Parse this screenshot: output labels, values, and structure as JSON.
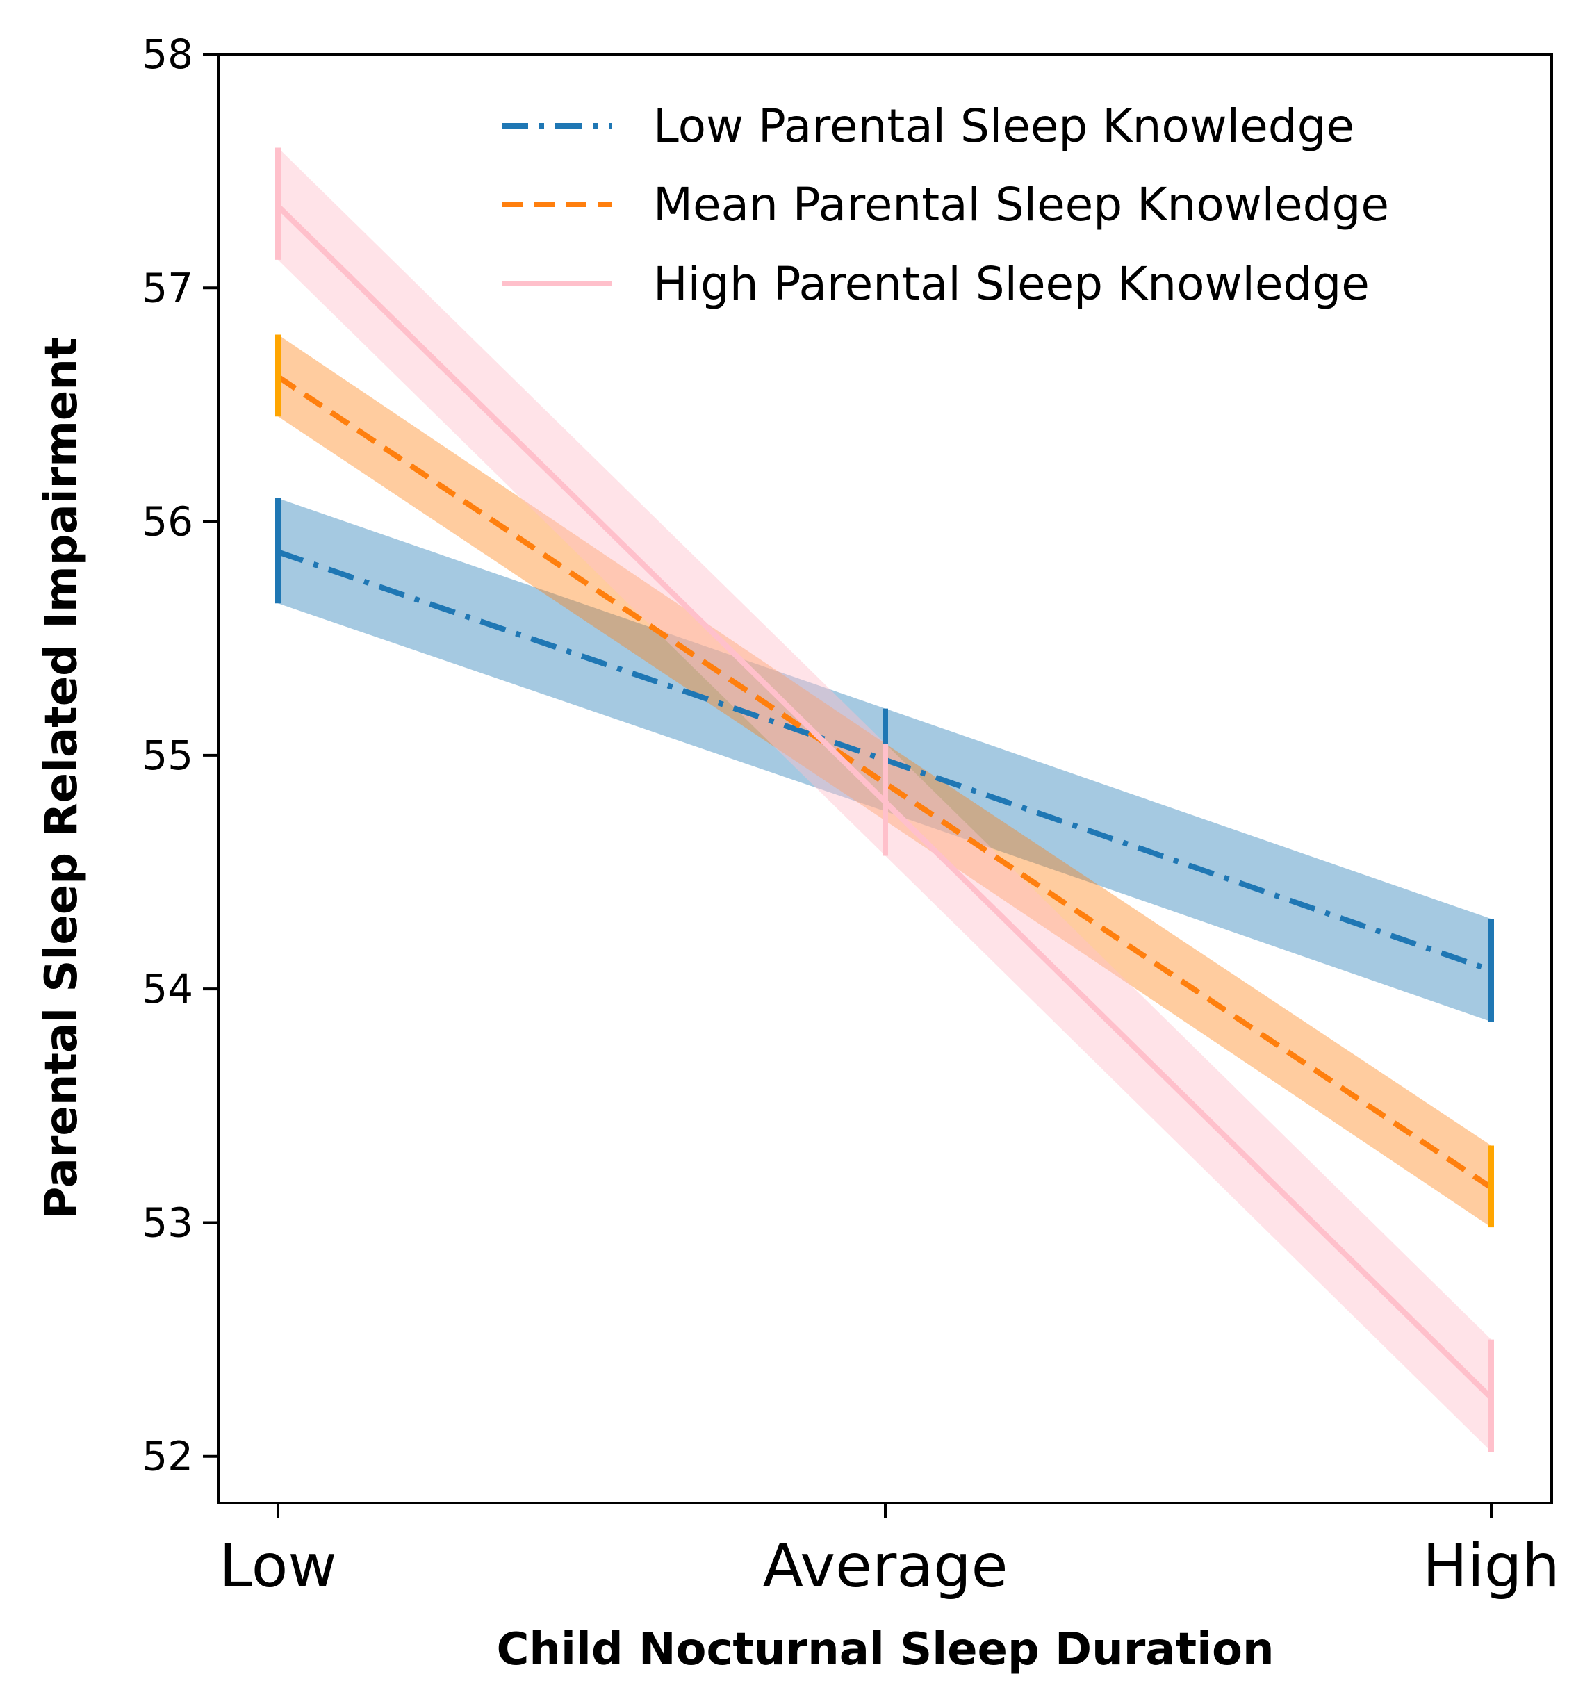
{
  "chart_data": {
    "type": "line",
    "title": "",
    "xlabel": "Child Nocturnal Sleep Duration",
    "ylabel": "Parental Sleep Related Impairment",
    "categories": [
      "Low",
      "Average",
      "High"
    ],
    "ylim": [
      51.8,
      58
    ],
    "yticks": [
      "52",
      "53",
      "54",
      "55",
      "56",
      "57",
      "58"
    ],
    "legend_position": "top-right",
    "series": [
      {
        "name": "Low Parental Sleep Knowledge",
        "color": "#1f77b4",
        "band_color": "#1f77b4",
        "errorbar_color": "#1f77b4",
        "linestyle": "dashdot",
        "values": [
          55.87,
          54.98,
          54.08
        ],
        "lower": [
          55.65,
          54.76,
          53.86
        ],
        "upper": [
          56.1,
          55.2,
          54.3
        ]
      },
      {
        "name": "Mean Parental Sleep Knowledge",
        "color": "#ff7f0e",
        "band_color": "#ff7f0e",
        "errorbar_color": "#ffa500",
        "linestyle": "dashed",
        "values": [
          56.62,
          54.88,
          53.15
        ],
        "lower": [
          56.45,
          54.72,
          52.98
        ],
        "upper": [
          56.8,
          55.05,
          53.33
        ]
      },
      {
        "name": "High Parental Sleep Knowledge",
        "color": "#ffc0cb",
        "band_color": "#ffc0cb",
        "errorbar_color": "#ffc0cb",
        "linestyle": "solid",
        "values": [
          57.35,
          54.8,
          52.25
        ],
        "lower": [
          57.12,
          54.57,
          52.02
        ],
        "upper": [
          57.6,
          55.05,
          52.5
        ]
      }
    ]
  }
}
